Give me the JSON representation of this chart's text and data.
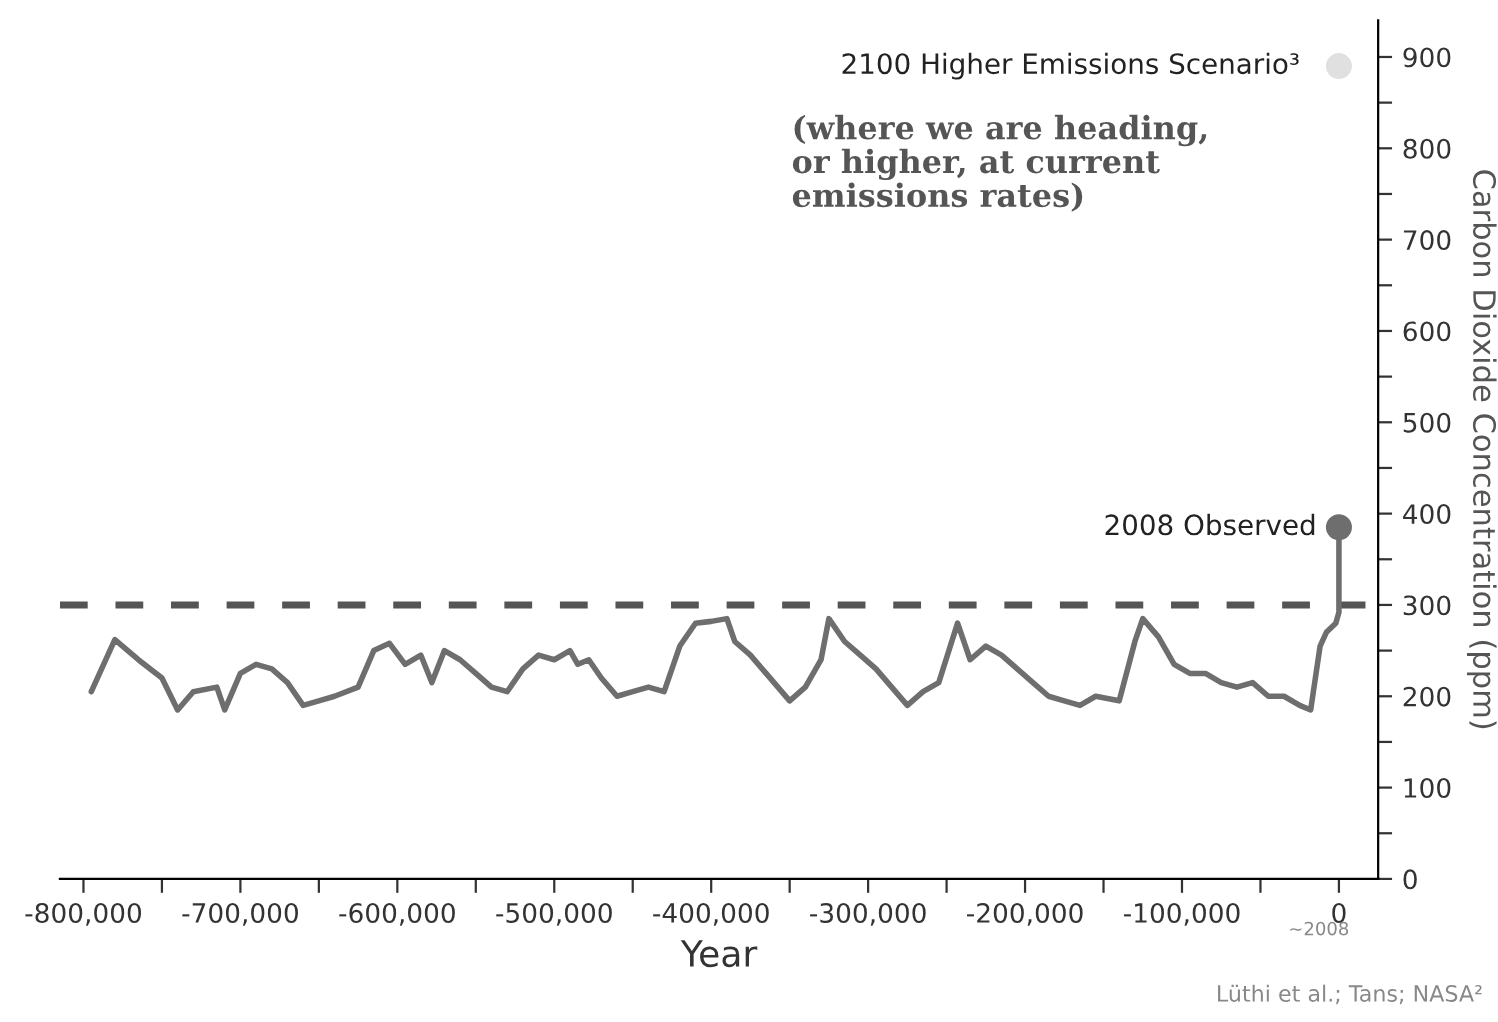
{
  "chart_data": {
    "type": "line",
    "xlabel": "Year",
    "ylabel": "Carbon Dioxide Concentration (ppm)",
    "series": [
      {
        "color": "#6e6e6e",
        "x": [
          -795000,
          -780000,
          -765000,
          -750000,
          -740000,
          -730000,
          -715000,
          -710000,
          -700000,
          -690000,
          -680000,
          -670000,
          -660000,
          -650000,
          -640000,
          -625000,
          -615000,
          -605000,
          -595000,
          -585000,
          -578000,
          -570000,
          -560000,
          -550000,
          -540000,
          -530000,
          -520000,
          -510000,
          -500000,
          -490000,
          -485000,
          -478000,
          -470000,
          -460000,
          -450000,
          -440000,
          -430000,
          -420000,
          -410000,
          -400000,
          -390000,
          -385000,
          -375000,
          -365000,
          -350000,
          -340000,
          -330000,
          -325000,
          -315000,
          -305000,
          -295000,
          -285000,
          -275000,
          -265000,
          -255000,
          -243000,
          -235000,
          -225000,
          -215000,
          -205000,
          -195000,
          -185000,
          -175000,
          -165000,
          -155000,
          -140000,
          -130000,
          -125000,
          -115000,
          -105000,
          -95000,
          -85000,
          -75000,
          -65000,
          -55000,
          -45000,
          -35000,
          -25000,
          -18000,
          -12000,
          -8000,
          -2000,
          0,
          0
        ],
        "values": [
          205,
          262,
          240,
          220,
          185,
          205,
          210,
          185,
          225,
          235,
          230,
          215,
          190,
          195,
          200,
          210,
          250,
          258,
          235,
          245,
          215,
          250,
          240,
          225,
          210,
          205,
          230,
          245,
          240,
          250,
          235,
          240,
          220,
          200,
          205,
          210,
          205,
          255,
          280,
          282,
          285,
          260,
          245,
          225,
          195,
          210,
          240,
          285,
          260,
          245,
          230,
          210,
          190,
          205,
          215,
          280,
          240,
          255,
          245,
          230,
          215,
          200,
          195,
          190,
          200,
          195,
          260,
          285,
          265,
          235,
          225,
          225,
          215,
          210,
          215,
          200,
          200,
          190,
          185,
          255,
          270,
          280,
          292,
          385
        ]
      },
      {
        "type": "scatter",
        "marker": "circle",
        "color": "#6e6e6e",
        "x": [
          0
        ],
        "values": [
          385
        ]
      },
      {
        "type": "scatter",
        "marker": "circle",
        "color": "#e0e0e0",
        "x": [
          0
        ],
        "values": [
          890
        ]
      }
    ],
    "ref_lines": [
      {
        "axis": "y",
        "value": 300,
        "color": "#555555",
        "line_style": "dashed"
      }
    ],
    "xlim": [
      -815000,
      25000
    ],
    "xticks": [
      {
        "value": -800000,
        "label": "-800,000"
      },
      {
        "value": -750000,
        "label": null
      },
      {
        "value": -700000,
        "label": "-700,000"
      },
      {
        "value": -650000,
        "label": null
      },
      {
        "value": -600000,
        "label": "-600,000"
      },
      {
        "value": -550000,
        "label": null
      },
      {
        "value": -500000,
        "label": "-500,000"
      },
      {
        "value": -450000,
        "label": null
      },
      {
        "value": -400000,
        "label": "-400,000"
      },
      {
        "value": -350000,
        "label": null
      },
      {
        "value": -300000,
        "label": "-300,000"
      },
      {
        "value": -250000,
        "label": null
      },
      {
        "value": -200000,
        "label": "-200,000"
      },
      {
        "value": -150000,
        "label": null
      },
      {
        "value": -100000,
        "label": "-100,000"
      },
      {
        "value": -50000,
        "label": null
      },
      {
        "value": 0,
        "label": "0"
      }
    ],
    "ylim": [
      0,
      940
    ],
    "yticks": [
      0,
      {
        "value": 50,
        "label": null
      },
      100,
      {
        "value": 150,
        "label": null
      },
      200,
      {
        "value": 250,
        "label": null
      },
      300,
      {
        "value": 350,
        "label": null
      },
      400,
      {
        "value": 450,
        "label": null
      },
      500,
      {
        "value": 550,
        "label": null
      },
      600,
      {
        "value": 650,
        "label": null
      },
      700,
      {
        "value": 750,
        "label": null
      },
      800,
      {
        "value": 850,
        "label": null
      },
      900
    ],
    "annotations": [
      {
        "text": "2100 Higher Emissions Scenario³",
        "x": 0,
        "y": 890
      },
      "(where we are heading,\nor higher, at current\nemissions rates)",
      {
        "text": "2008 Observed",
        "x": 0,
        "y": 385
      },
      "~2008",
      "Lüthi et al.; Tans; NASA²"
    ],
    "grid": false,
    "legend": false,
    "marker": "none",
    "line_style": "solid"
  }
}
